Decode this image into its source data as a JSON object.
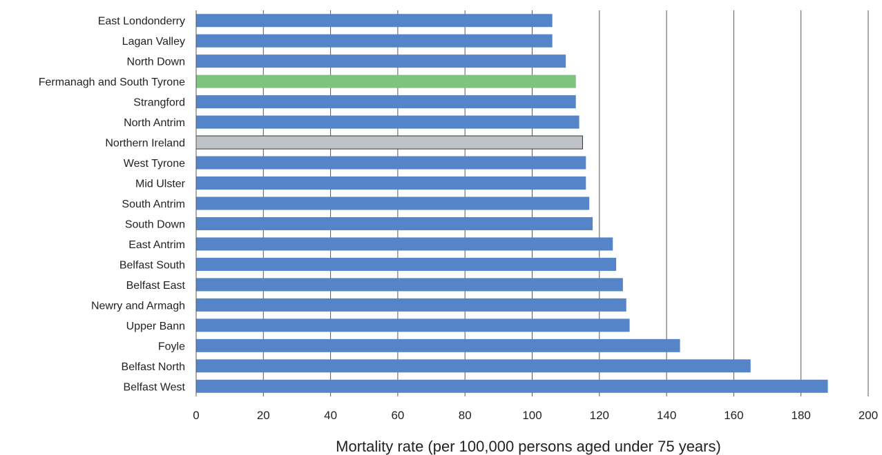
{
  "chart_data": {
    "type": "bar",
    "orientation": "horizontal",
    "title": "",
    "xlabel": "Mortality rate (per 100,000 persons aged under 75 years)",
    "ylabel": "",
    "xlim": [
      0,
      200
    ],
    "xticks": [
      0,
      20,
      40,
      60,
      80,
      100,
      120,
      140,
      160,
      180,
      200
    ],
    "grid": "vertical major gridlines",
    "legend": "none",
    "colors": {
      "default": "#5585c8",
      "highlight": "#7dc47f",
      "reference": "#bfc2c6",
      "reference_border": "#333333",
      "grid": "#555555",
      "axis": "#555555"
    },
    "categories": [
      "East Londonderry",
      "Lagan Valley",
      "North Down",
      "Fermanagh and South Tyrone",
      "Strangford",
      "North Antrim",
      "Northern Ireland",
      "West Tyrone",
      "Mid Ulster",
      "South Antrim",
      "South Down",
      "East Antrim",
      "Belfast South",
      "Belfast East",
      "Newry and Armagh",
      "Upper Bann",
      "Foyle",
      "Belfast North",
      "Belfast West"
    ],
    "values": [
      106,
      106,
      110,
      113,
      113,
      114,
      115,
      116,
      116,
      117,
      118,
      124,
      125,
      127,
      128,
      129,
      144,
      165,
      188
    ],
    "highlight_category": "Fermanagh and South Tyrone",
    "reference_category": "Northern Ireland"
  }
}
